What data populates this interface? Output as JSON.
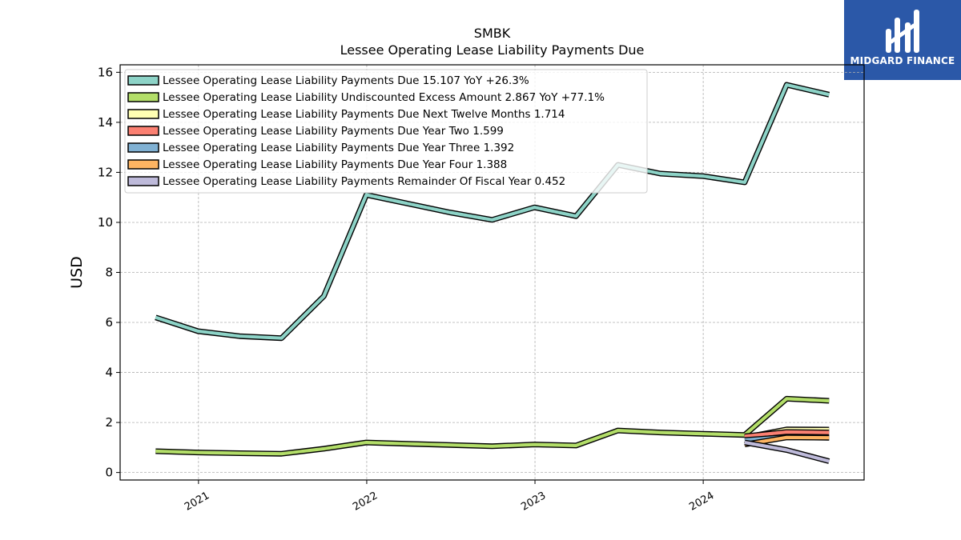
{
  "brand": {
    "name": "MIDGARD FINANCE",
    "color": "#2b58a8",
    "logo": "midgard-logo-icon"
  },
  "chart_data": {
    "type": "line",
    "title": "SMBK",
    "subtitle": "Lessee Operating Lease Liability Payments Due",
    "ylabel": "USD",
    "xlabel": "",
    "ylim": [
      -0.3,
      16.3
    ],
    "xlim": [
      "2020-07-15",
      "2024-12-15"
    ],
    "yticks": [
      "0",
      "2",
      "4",
      "6",
      "8",
      "10",
      "12",
      "14",
      "16"
    ],
    "xticks": [
      "2021",
      "2022",
      "2023",
      "2024"
    ],
    "grid": true,
    "legend_position": "top-left",
    "series": [
      {
        "name": "Lessee Operating Lease Liability Payments Due",
        "legend": "Lessee Operating Lease Liability Payments Due  15.107 YoY +26.3%",
        "color": "#8dd3c7",
        "x": [
          "2020-09-30",
          "2020-12-31",
          "2021-03-31",
          "2021-06-30",
          "2021-09-30",
          "2021-12-31",
          "2022-03-31",
          "2022-06-30",
          "2022-09-30",
          "2022-12-31",
          "2023-03-31",
          "2023-06-30",
          "2023-09-30",
          "2023-12-31",
          "2024-03-31",
          "2024-06-30",
          "2024-09-30"
        ],
        "values": [
          6.2,
          5.65,
          5.45,
          5.37,
          7.05,
          11.1,
          10.75,
          10.4,
          10.1,
          10.6,
          10.25,
          12.3,
          11.95,
          11.85,
          11.6,
          15.5,
          15.107
        ]
      },
      {
        "name": "Lessee Operating Lease Liability Undiscounted Excess Amount",
        "legend": "Lessee Operating Lease Liability Undiscounted Excess Amount  2.867 YoY +77.1%",
        "color": "#b3de69",
        "x": [
          "2020-09-30",
          "2020-12-31",
          "2021-03-31",
          "2021-06-30",
          "2021-09-30",
          "2021-12-31",
          "2022-03-31",
          "2022-06-30",
          "2022-09-30",
          "2022-12-31",
          "2023-03-31",
          "2023-06-30",
          "2023-09-30",
          "2023-12-31",
          "2024-03-31",
          "2024-06-30",
          "2024-09-30"
        ],
        "values": [
          0.85,
          0.8,
          0.77,
          0.75,
          0.95,
          1.2,
          1.15,
          1.1,
          1.05,
          1.12,
          1.08,
          1.68,
          1.6,
          1.55,
          1.5,
          2.95,
          2.867
        ]
      },
      {
        "name": "Lessee Operating Lease Liability Payments Due Next Twelve Months",
        "legend": "Lessee Operating Lease Liability Payments Due Next Twelve Months  1.714",
        "color": "#ffffb3",
        "x": [
          "2024-03-31",
          "2024-06-30",
          "2024-09-30"
        ],
        "values": [
          1.4,
          1.72,
          1.714
        ]
      },
      {
        "name": "Lessee Operating Lease Liability Payments Due Year Two",
        "legend": "Lessee Operating Lease Liability Payments Due Year Two  1.599",
        "color": "#fb8072",
        "x": [
          "2024-03-31",
          "2024-06-30",
          "2024-09-30"
        ],
        "values": [
          1.45,
          1.62,
          1.599
        ]
      },
      {
        "name": "Lessee Operating Lease Liability Payments Due Year Three",
        "legend": "Lessee Operating Lease Liability Payments Due Year Three  1.392",
        "color": "#80b1d3",
        "x": [
          "2024-03-31",
          "2024-06-30",
          "2024-09-30"
        ],
        "values": [
          1.3,
          1.42,
          1.392
        ]
      },
      {
        "name": "Lessee Operating Lease Liability Payments Due Year Four",
        "legend": "Lessee Operating Lease Liability Payments Due Year Four  1.388",
        "color": "#fdb462",
        "x": [
          "2024-03-31",
          "2024-06-30",
          "2024-09-30"
        ],
        "values": [
          1.12,
          1.4,
          1.388
        ]
      },
      {
        "name": "Lessee Operating Lease Liability Payments Remainder Of Fiscal Year",
        "legend": "Lessee Operating Lease Liability Payments Remainder Of Fiscal Year  0.452",
        "color": "#bebada",
        "x": [
          "2024-03-31",
          "2024-06-30",
          "2024-09-30"
        ],
        "values": [
          1.2,
          0.9,
          0.452
        ]
      }
    ]
  }
}
